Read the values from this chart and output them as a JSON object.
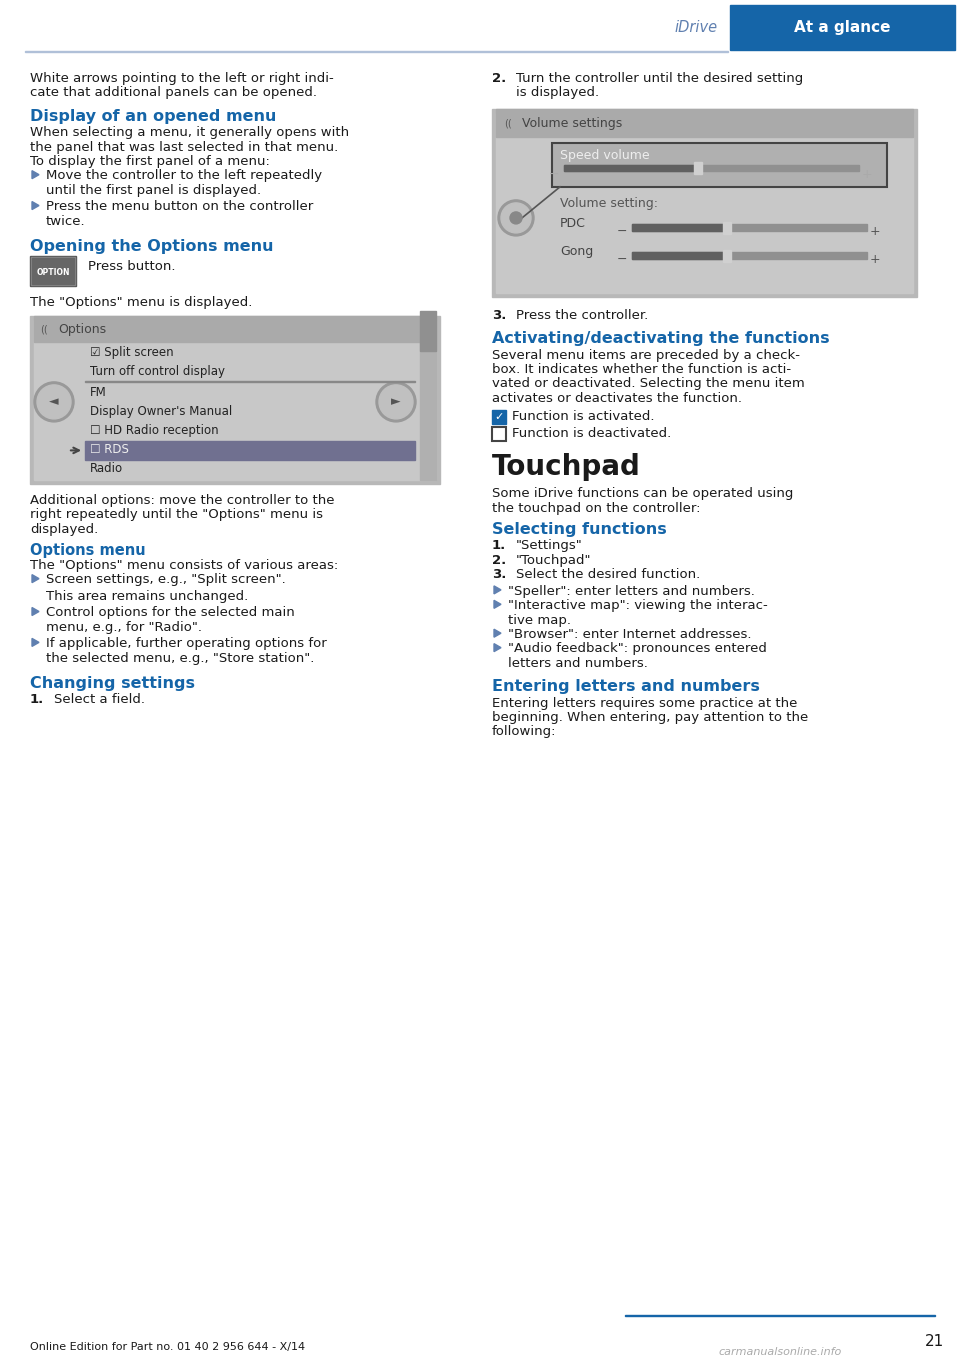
{
  "page_bg": "#ffffff",
  "header_blue_bg": "#1565a8",
  "header_blue_text": "#ffffff",
  "header_label_text": "#6080b0",
  "header_line_color": "#b0c0d8",
  "section_title_color": "#1565a8",
  "body_text_color": "#1a1a1a",
  "bullet_arrow_color": "#6080b0",
  "footer_text_color": "#1a1a1a",
  "page_number": "21",
  "header_right_label": "At a glance",
  "header_left_label": "iDrive",
  "footer_text": "Online Edition for Part no. 01 40 2 956 644 - X/14",
  "watermark": "carmanualsonline.info",
  "figw": 9.6,
  "figh": 13.62,
  "dpi": 100
}
